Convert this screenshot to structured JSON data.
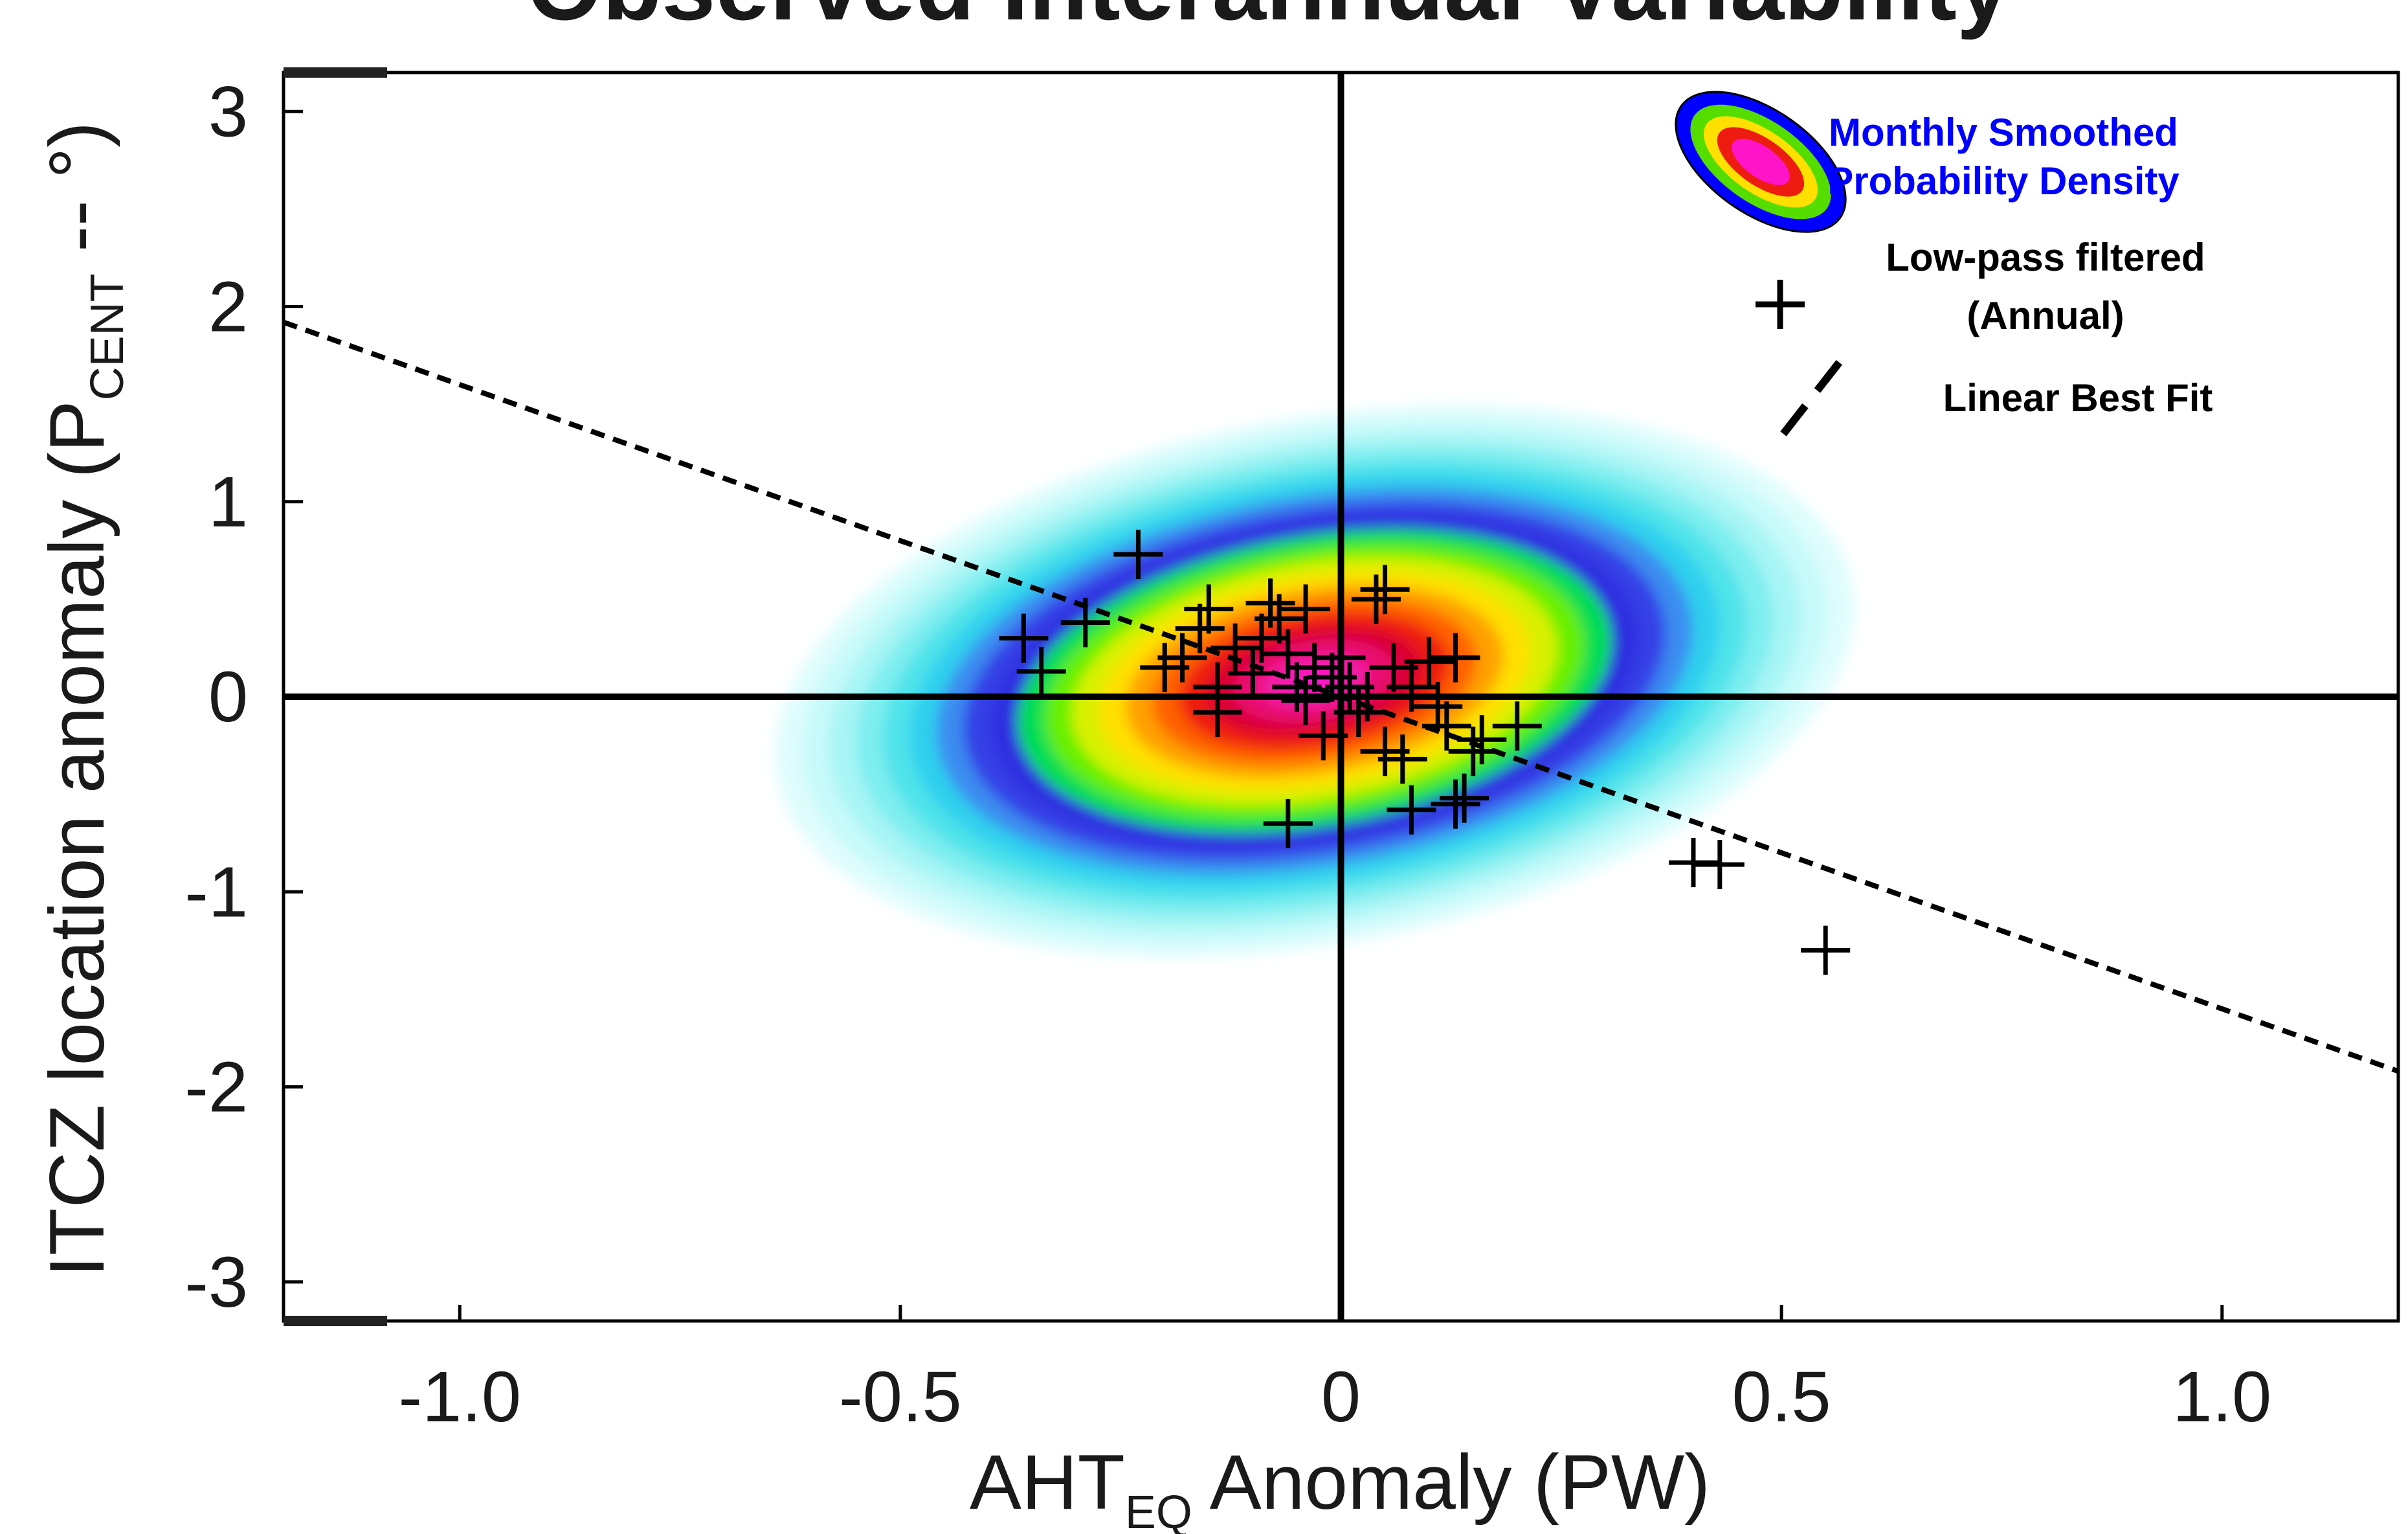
{
  "chart_data": {
    "type": "scatter",
    "title": "Observed Interannual Variability",
    "xlabel": {
      "main": "AHT",
      "sub": "EQ",
      "rest": " Anomaly (PW)"
    },
    "ylabel": {
      "main": "ITCZ location anomaly (P",
      "sub": "CENT",
      "rest": " -- °)"
    },
    "xlim": [
      -1.2,
      1.2
    ],
    "ylim": [
      -3.2,
      3.2
    ],
    "xticks": [
      -1.0,
      -0.5,
      0,
      0.5,
      1.0
    ],
    "xtick_labels": [
      "-1.0",
      "-0.5",
      "0",
      "0.5",
      "1.0"
    ],
    "yticks": [
      3,
      2,
      1,
      0,
      -1,
      -2,
      -3
    ],
    "ytick_labels": [
      "3",
      "2",
      "1",
      "0",
      "-1",
      "-2",
      "-3"
    ],
    "density": {
      "kind": "filled-contour",
      "center": [
        -0.03,
        0.08
      ],
      "semi_axes": [
        0.62,
        1.35
      ],
      "colors": [
        "#e0fdfd",
        "#c8fafa",
        "#a8f5f5",
        "#7eeef0",
        "#4fe3ea",
        "#2fd0ee",
        "#3a8cf0",
        "#3640e6",
        "#2e2ee0",
        "#00dd55",
        "#66f000",
        "#d8f000",
        "#ffe000",
        "#ffa000",
        "#ff6000",
        "#ee1c10",
        "#d90030",
        "#e81070",
        "#f21aa6",
        "#ff14c8"
      ]
    },
    "series": [
      {
        "marker": "plus",
        "color": "#000000",
        "points": [
          [
            -0.36,
            0.3
          ],
          [
            -0.34,
            0.13
          ],
          [
            -0.29,
            0.38
          ],
          [
            -0.23,
            0.73
          ],
          [
            -0.2,
            0.15
          ],
          [
            -0.18,
            0.2
          ],
          [
            -0.16,
            0.35
          ],
          [
            -0.15,
            0.45
          ],
          [
            -0.14,
            0.05
          ],
          [
            -0.14,
            -0.08
          ],
          [
            -0.12,
            0.25
          ],
          [
            -0.1,
            0.12
          ],
          [
            -0.09,
            0.3
          ],
          [
            -0.08,
            0.48
          ],
          [
            -0.07,
            0.4
          ],
          [
            -0.06,
            0.22
          ],
          [
            -0.05,
            0.05
          ],
          [
            -0.04,
            -0.02
          ],
          [
            -0.04,
            0.45
          ],
          [
            -0.03,
            0.15
          ],
          [
            -0.02,
            -0.2
          ],
          [
            -0.01,
            0.1
          ],
          [
            0.0,
            0.2
          ],
          [
            0.01,
            0.05
          ],
          [
            0.02,
            -0.08
          ],
          [
            0.03,
            0.0
          ],
          [
            0.04,
            0.5
          ],
          [
            0.05,
            0.55
          ],
          [
            0.05,
            -0.28
          ],
          [
            0.06,
            0.15
          ],
          [
            0.07,
            -0.32
          ],
          [
            0.08,
            0.05
          ],
          [
            0.1,
            0.18
          ],
          [
            0.11,
            -0.05
          ],
          [
            0.12,
            -0.15
          ],
          [
            0.13,
            0.2
          ],
          [
            0.15,
            -0.28
          ],
          [
            0.16,
            -0.22
          ],
          [
            0.2,
            -0.15
          ],
          [
            -0.06,
            -0.65
          ],
          [
            0.08,
            -0.58
          ],
          [
            0.13,
            -0.55
          ],
          [
            0.14,
            -0.52
          ],
          [
            0.4,
            -0.85
          ],
          [
            0.43,
            -0.86
          ],
          [
            0.55,
            -1.3
          ]
        ]
      }
    ],
    "fit_line": {
      "slope": -1.6,
      "intercept": 0.0
    },
    "legend": {
      "position": "top-right",
      "density_label": [
        "Monthly Smoothed",
        "Probability Density"
      ],
      "points_label": [
        "Low-pass filtered",
        "(Annual)"
      ],
      "fit_label": "Linear Best Fit"
    },
    "grid": false
  }
}
